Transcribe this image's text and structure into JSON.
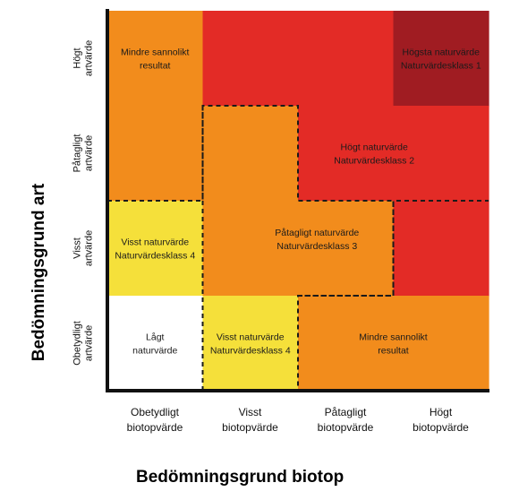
{
  "axes": {
    "y_title": "Bedömningsgrund art",
    "x_title": "Bedömningsgrund biotop",
    "y_levels": [
      [
        "Högt",
        "artvärde"
      ],
      [
        "Påtagligt",
        "artvärde"
      ],
      [
        "Visst",
        "artvärde"
      ],
      [
        "Obetydligt",
        "artvärde"
      ]
    ],
    "x_levels": [
      [
        "Obetydligt",
        "biotopvärde"
      ],
      [
        "Visst",
        "biotopvärde"
      ],
      [
        "Påtagligt",
        "biotopvärde"
      ],
      [
        "Högt",
        "biotopvärde"
      ]
    ]
  },
  "colors": {
    "orange": "#f28c1c",
    "red": "#e32b26",
    "dark_red": "#a01c22",
    "yellow": "#f5e03a",
    "white": "#ffffff",
    "axis": "#111111",
    "boundary": "#1a1a1a"
  },
  "grid": {
    "rows": 4,
    "cols": 4,
    "cell_colors": [
      [
        "orange",
        "red",
        "red",
        "dark_red"
      ],
      [
        "orange",
        "orange",
        "red",
        "red"
      ],
      [
        "yellow",
        "orange",
        "orange",
        "red"
      ],
      [
        "white",
        "yellow",
        "orange",
        "orange"
      ]
    ]
  },
  "labels": [
    {
      "id": "mindre-sannolikt-top",
      "lines": [
        "Mindre sannolikt",
        "resultat"
      ],
      "row": 0,
      "col": 0
    },
    {
      "id": "klass-1",
      "lines": [
        "Högsta naturvärde",
        "Naturvärdesklass 1"
      ],
      "row": 0,
      "col": 3
    },
    {
      "id": "klass-2",
      "lines": [
        "Högt naturvärde",
        "Naturvärdesklass 2"
      ],
      "row": 1,
      "col": 2.3
    },
    {
      "id": "klass-3",
      "lines": [
        "Påtagligt naturvärde",
        "Naturvärdesklass 3"
      ],
      "row": 1.9,
      "col": 1.7
    },
    {
      "id": "klass-4-a",
      "lines": [
        "Visst naturvärde",
        "Naturvärdesklass 4"
      ],
      "row": 2,
      "col": 0
    },
    {
      "id": "lagt",
      "lines": [
        "Lågt",
        "naturvärde"
      ],
      "row": 3,
      "col": 0
    },
    {
      "id": "klass-4-b",
      "lines": [
        "Visst naturvärde",
        "Naturvärdesklass 4"
      ],
      "row": 3,
      "col": 1
    },
    {
      "id": "mindre-sannolikt-bottom",
      "lines": [
        "Mindre sannolikt",
        "resultat"
      ],
      "row": 3,
      "col": 2.5
    }
  ],
  "boundaries": [
    {
      "id": "class3-boundary",
      "path": [
        [
          1,
          4
        ],
        [
          1,
          1
        ],
        [
          2,
          1
        ],
        [
          2,
          2
        ],
        [
          3,
          2
        ],
        [
          3,
          3
        ],
        [
          2,
          3
        ],
        [
          2,
          4
        ]
      ]
    },
    {
      "id": "class2-boundary",
      "path": [
        [
          0,
          2
        ],
        [
          1,
          2
        ],
        [
          1,
          1
        ]
      ]
    },
    {
      "id": "class2-lower-boundary",
      "path": [
        [
          2,
          3
        ],
        [
          3,
          3
        ],
        [
          3,
          2
        ],
        [
          4,
          2
        ]
      ]
    }
  ]
}
